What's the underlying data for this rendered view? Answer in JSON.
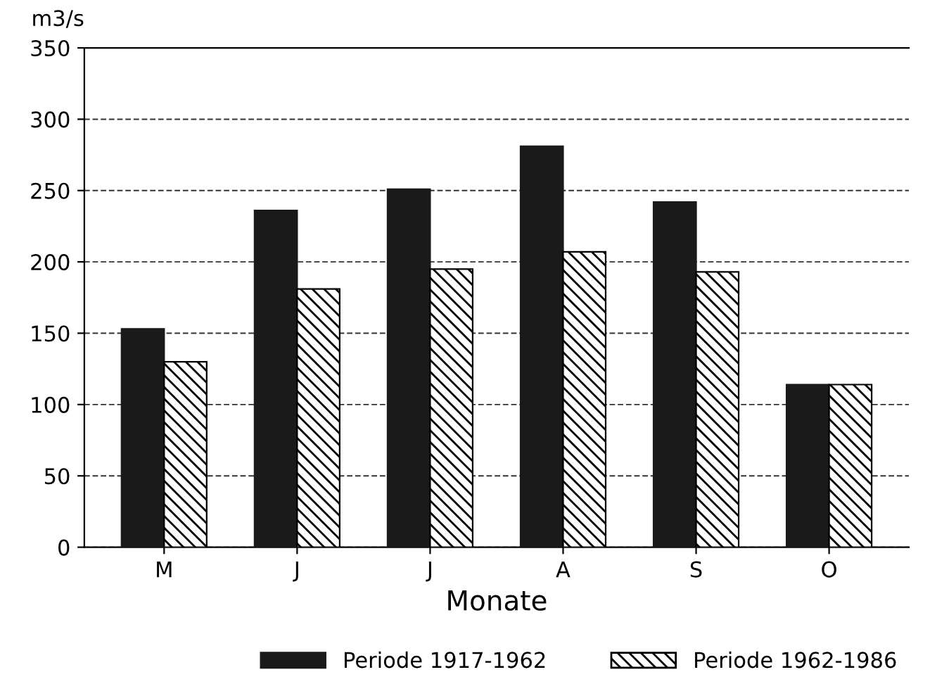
{
  "chart_data": {
    "type": "bar",
    "ylabel": "m3/s",
    "xlabel": "Monate",
    "categories": [
      "M",
      "J",
      "J",
      "A",
      "S",
      "O"
    ],
    "series": [
      {
        "name": "Periode 1917-1962",
        "color": "#1a1a1a",
        "values": [
          153,
          236,
          251,
          281,
          242,
          114
        ]
      },
      {
        "name": "Periode 1962-1986",
        "color": "#000000",
        "values": [
          130,
          181,
          195,
          207,
          193,
          114
        ]
      }
    ],
    "ylim": [
      0,
      350
    ],
    "yticks": [
      0,
      50,
      100,
      150,
      200,
      250,
      300,
      350
    ],
    "grid": "y",
    "legend": "bottom"
  }
}
